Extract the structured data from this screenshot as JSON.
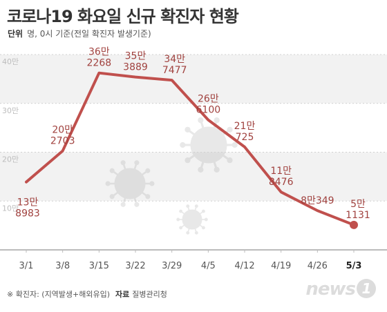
{
  "header": {
    "title": "코로나19 화요일 신규 확진자 현황",
    "unit_label": "단위",
    "unit_text": "명, 0시 기준(전일 확진자 발생기준)"
  },
  "chart_data": {
    "type": "line",
    "title": "코로나19 화요일 신규 확진자 현황",
    "xlabel": "",
    "ylabel": "",
    "categories": [
      "3/1",
      "3/8",
      "3/15",
      "3/22",
      "3/29",
      "4/5",
      "4/12",
      "4/19",
      "4/26",
      "5/3"
    ],
    "values": [
      138983,
      202703,
      362268,
      353889,
      347477,
      266100,
      210725,
      118476,
      80349,
      51131
    ],
    "labels": [
      [
        "13만",
        "8983"
      ],
      [
        "20만",
        "2703"
      ],
      [
        "36만",
        "2268"
      ],
      [
        "35만",
        "3889"
      ],
      [
        "34만",
        "7477"
      ],
      [
        "26만",
        "6100"
      ],
      [
        "21만",
        "725"
      ],
      [
        "11만",
        "8476"
      ],
      [
        "8만349",
        ""
      ],
      [
        "5만",
        "1131"
      ]
    ],
    "y_ticks": [
      "40만",
      "30만",
      "20만",
      "10만"
    ],
    "y_tick_values": [
      400000,
      300000,
      200000,
      100000
    ],
    "ylim": [
      0,
      400000
    ],
    "highlight_category": "5/3",
    "grid": true,
    "line_color": "#c0504d",
    "band_color": "#f2f2f2"
  },
  "footer": {
    "note": "※ 확진자: (지역발생+해외유입)",
    "source_label": "자료",
    "source": "질병관리청"
  },
  "logo": {
    "text": "news",
    "mark": "1"
  }
}
